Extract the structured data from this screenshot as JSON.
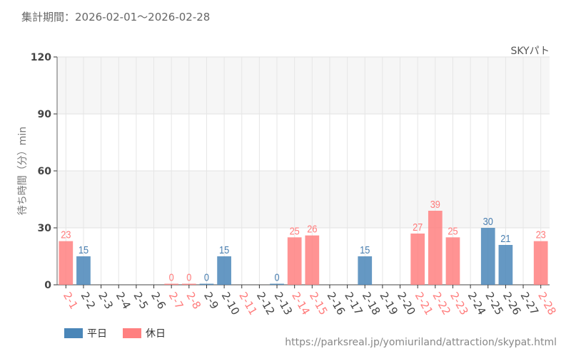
{
  "header": {
    "period": "集計期間：2026-02-01～2026-02-28",
    "attraction": "SKYパト",
    "url": "https://parksreal.jp/yomiuriland/attraction/skypat.html"
  },
  "colors": {
    "weekday": "#4a86b8",
    "holiday": "#ff8080",
    "weekday_label": "#4a7fb0",
    "holiday_label": "#ff7b7b"
  },
  "chart_data": {
    "type": "bar",
    "title": "",
    "xlabel": "",
    "ylabel": "待ち時間（分）min",
    "ylim": [
      0,
      120
    ],
    "yticks": [
      0,
      30,
      60,
      90,
      120
    ],
    "grid": true,
    "legend_position": "bottom-left",
    "legend": [
      "平日",
      "休日"
    ],
    "categories": [
      "2-1",
      "2-2",
      "2-3",
      "2-4",
      "2-5",
      "2-6",
      "2-7",
      "2-8",
      "2-9",
      "2-10",
      "2-11",
      "2-12",
      "2-13",
      "2-14",
      "2-15",
      "2-16",
      "2-17",
      "2-18",
      "2-19",
      "2-20",
      "2-21",
      "2-22",
      "2-23",
      "2-24",
      "2-25",
      "2-26",
      "2-27",
      "2-28"
    ],
    "holiday": [
      true,
      false,
      false,
      false,
      false,
      false,
      true,
      true,
      false,
      false,
      true,
      false,
      false,
      true,
      true,
      false,
      false,
      false,
      false,
      false,
      true,
      true,
      true,
      false,
      false,
      false,
      false,
      true
    ],
    "values": [
      23,
      15,
      null,
      null,
      null,
      null,
      0,
      0,
      0,
      15,
      null,
      null,
      0,
      25,
      26,
      null,
      null,
      15,
      null,
      null,
      27,
      39,
      25,
      null,
      30,
      21,
      null,
      23
    ]
  }
}
